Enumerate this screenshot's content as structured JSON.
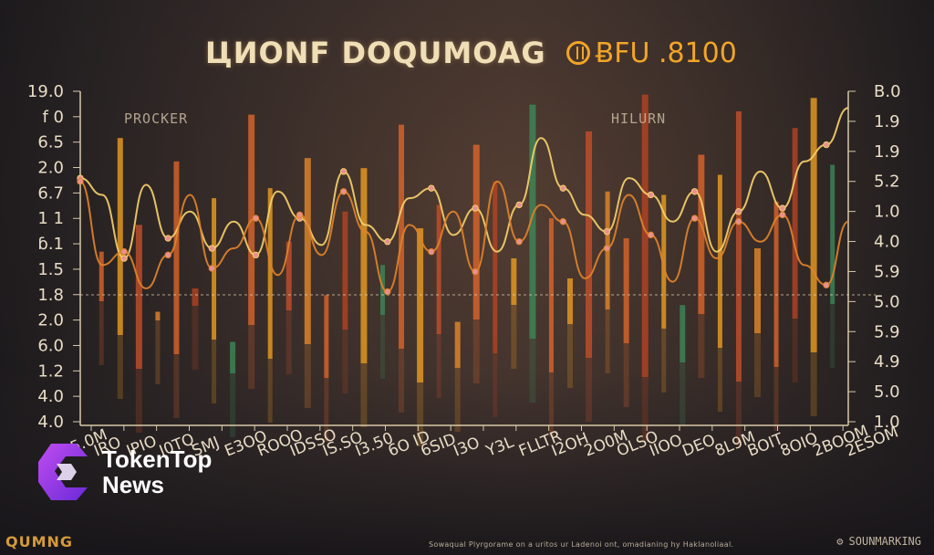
{
  "header": {
    "title": "ЦИОNF DOQUMOAG",
    "price": "ɃFU .8100"
  },
  "annotations": {
    "left": "PROCKER",
    "right": "HILURN"
  },
  "brand": {
    "line1": "TokenTop",
    "line2": "News",
    "icon": "tokentop-logo-icon"
  },
  "footer": {
    "left": "QUMNG",
    "right": "SOUNMARKING",
    "note": "Sowaqual Plyrgorame on a uritos ur Ladenoi ont, omadianing hy Haklanoliaal."
  },
  "colors": {
    "axis": "#d8c9a8",
    "accent": "#f2a526",
    "orange": "#e0662a",
    "gold": "#f0a020",
    "green": "#3e8a5a",
    "line1": "#f5cf6a",
    "line2": "#e0822a"
  },
  "chart_data": {
    "type": "bar",
    "title": "ЦИОNF DOQUMOAG",
    "left_ticks": [
      "19.0",
      "f 0",
      "6.5",
      "2.0",
      "6.7",
      "1 1",
      "ɓ.1",
      "1.5",
      "1.8",
      "2.0",
      "6.0",
      "1.2",
      "4.0",
      "4.0"
    ],
    "right_ticks": [
      "B.0",
      "1.9",
      "1.9",
      "5.2",
      "1.0",
      "4.0",
      "5.9",
      "5.0",
      "5.9",
      "4.9",
      "5.0",
      "1.0"
    ],
    "x_labels": [
      "15.0M",
      "IRO",
      "IPIO",
      "I0TQ",
      "SMJ",
      "E3OO",
      "ROOO",
      "IDSSO",
      "IS.SO",
      "I3.50",
      "6O ID",
      "6SID",
      "I3O",
      "Y3L",
      "FLLTR",
      "I2OH",
      "2O0M",
      "OLSO",
      "IIOO",
      "DEO",
      "8L9M",
      "BOIT",
      "8OIO",
      "2BOOM",
      "2ESOM"
    ],
    "bar_values": [
      5.2,
      8.6,
      6.0,
      3.4,
      7.9,
      4.1,
      6.8,
      2.5,
      9.3,
      7.1,
      5.5,
      8.0,
      3.9,
      6.4,
      7.7,
      4.8,
      9.0,
      5.9,
      6.6,
      3.1,
      8.4,
      7.3,
      5.0,
      9.6,
      6.2,
      4.4,
      8.8,
      7.0,
      5.6,
      9.9,
      6.9,
      3.6,
      8.1,
      7.5,
      9.4,
      5.3,
      6.7,
      8.9,
      9.8,
      7.8
    ],
    "series": [
      {
        "values": [
          7.4,
          6.9,
          5.0,
          7.2,
          5.6,
          6.4,
          5.3,
          6.1,
          5.1,
          7.0,
          6.2,
          5.4,
          7.6,
          6.0,
          5.5,
          6.8,
          7.1,
          5.7,
          6.5,
          5.2,
          6.6,
          8.6,
          7.1,
          6.3,
          5.8,
          7.4,
          6.9,
          6.1,
          7.0,
          5.2,
          6.4,
          7.6,
          6.5,
          7.9,
          8.4,
          9.5
        ]
      },
      {
        "values": [
          7.3,
          4.8,
          5.2,
          4.1,
          5.1,
          6.9,
          4.7,
          5.3,
          6.2,
          4.5,
          6.3,
          5.1,
          7.0,
          5.8,
          4.0,
          6.0,
          5.2,
          6.4,
          4.6,
          7.3,
          5.5,
          6.6,
          6.1,
          4.4,
          5.3,
          6.9,
          5.7,
          4.3,
          6.2,
          5.0,
          6.1,
          5.5,
          6.3,
          4.8,
          4.2,
          6.1
        ]
      }
    ],
    "ylim": [
      0,
      10
    ],
    "grid": false
  }
}
